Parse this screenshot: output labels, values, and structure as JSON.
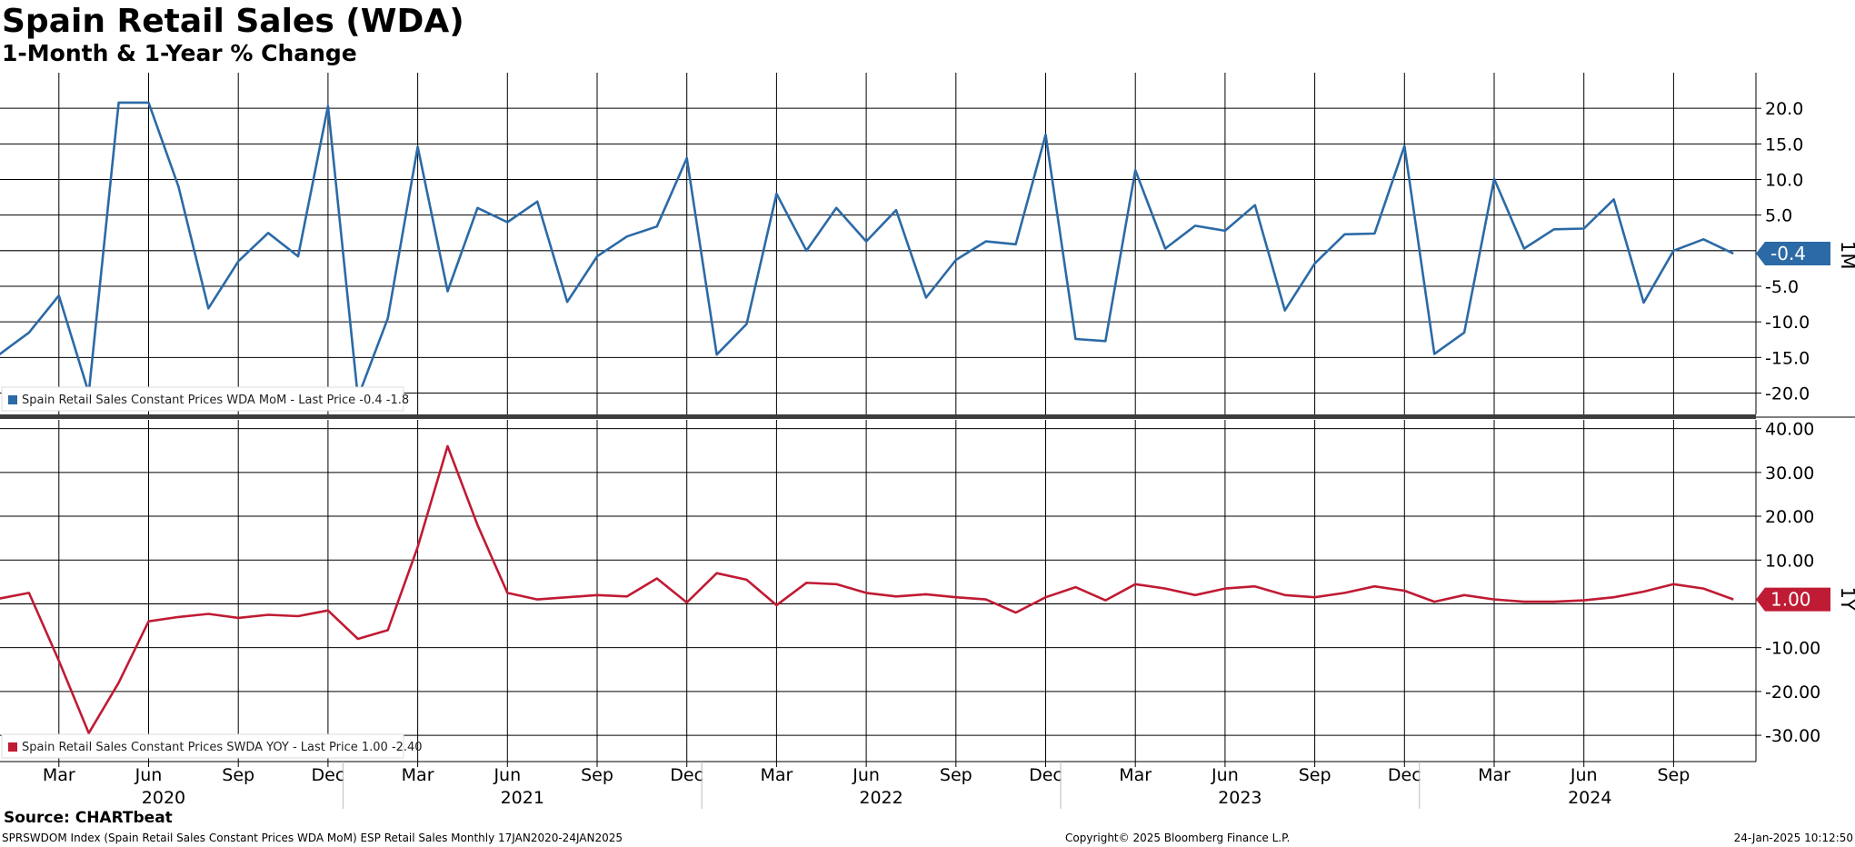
{
  "header": {
    "title": "Spain Retail Sales (WDA)",
    "subtitle": "1-Month & 1-Year % Change"
  },
  "footer": {
    "source": "Source: CHARTbeat",
    "left": "SPRSWDOM Index (Spain Retail Sales Constant Prices WDA MoM) ESP Retail Sales  Monthly 17JAN2020-24JAN2025",
    "copyright": "Copyright© 2025 Bloomberg Finance L.P.",
    "timestamp": "24-Jan-2025 10:12:50"
  },
  "colors": {
    "mom_series": "#2b6aa6",
    "yoy_series": "#c01b34",
    "grid": "#000000",
    "divider": "#3c3c3c"
  },
  "chart_data": [
    {
      "type": "line",
      "panel_label": "1M",
      "x": [
        "2020-01",
        "2020-02",
        "2020-03",
        "2020-04",
        "2020-05",
        "2020-06",
        "2020-07",
        "2020-08",
        "2020-09",
        "2020-10",
        "2020-11",
        "2020-12",
        "2021-01",
        "2021-02",
        "2021-03",
        "2021-04",
        "2021-05",
        "2021-06",
        "2021-07",
        "2021-08",
        "2021-09",
        "2021-10",
        "2021-11",
        "2021-12",
        "2022-01",
        "2022-02",
        "2022-03",
        "2022-04",
        "2022-05",
        "2022-06",
        "2022-07",
        "2022-08",
        "2022-09",
        "2022-10",
        "2022-11",
        "2022-12",
        "2023-01",
        "2023-02",
        "2023-03",
        "2023-04",
        "2023-05",
        "2023-06",
        "2023-07",
        "2023-08",
        "2023-09",
        "2023-10",
        "2023-11",
        "2023-12",
        "2024-01",
        "2024-02",
        "2024-03",
        "2024-04",
        "2024-05",
        "2024-06",
        "2024-07",
        "2024-08",
        "2024-09",
        "2024-10",
        "2024-11"
      ],
      "series": [
        {
          "name": "Spain Retail Sales Constant Prices WDA MoM",
          "legend_text": "Spain Retail Sales Constant Prices WDA MoM - Last Price -0.4  -1.8",
          "last_price_label": "-0.4",
          "values": [
            -14.6,
            -11.5,
            -6.3,
            -20.0,
            20.8,
            20.8,
            9.0,
            -8.1,
            -1.5,
            2.5,
            -0.8,
            20.3,
            -20.6,
            -9.5,
            14.6,
            -5.7,
            6.0,
            4.0,
            6.9,
            -7.2,
            -0.8,
            2.0,
            3.4,
            13.0,
            -14.6,
            -10.3,
            8.0,
            0.0,
            6.0,
            1.3,
            5.7,
            -6.6,
            -1.3,
            1.3,
            0.9,
            16.3,
            -12.4,
            -12.7,
            11.3,
            0.3,
            3.5,
            2.8,
            6.4,
            -8.4,
            -1.8,
            2.3,
            2.4,
            14.7,
            -14.5,
            -11.5,
            10.1,
            0.3,
            3.0,
            3.1,
            7.2,
            -7.3,
            0.0,
            1.6,
            -0.4
          ]
        }
      ],
      "yticks": [
        "20.0",
        "15.0",
        "10.0",
        "5.0",
        "-5.0",
        "-10.0",
        "-15.0",
        "-20.0"
      ],
      "ylim": [
        -23.0,
        25.0
      ],
      "grid": true,
      "legend_position": "bottom-left"
    },
    {
      "type": "line",
      "panel_label": "1Y",
      "x": [
        "2020-01",
        "2020-02",
        "2020-03",
        "2020-04",
        "2020-05",
        "2020-06",
        "2020-07",
        "2020-08",
        "2020-09",
        "2020-10",
        "2020-11",
        "2020-12",
        "2021-01",
        "2021-02",
        "2021-03",
        "2021-04",
        "2021-05",
        "2021-06",
        "2021-07",
        "2021-08",
        "2021-09",
        "2021-10",
        "2021-11",
        "2021-12",
        "2022-01",
        "2022-02",
        "2022-03",
        "2022-04",
        "2022-05",
        "2022-06",
        "2022-07",
        "2022-08",
        "2022-09",
        "2022-10",
        "2022-11",
        "2022-12",
        "2023-01",
        "2023-02",
        "2023-03",
        "2023-04",
        "2023-05",
        "2023-06",
        "2023-07",
        "2023-08",
        "2023-09",
        "2023-10",
        "2023-11",
        "2023-12",
        "2024-01",
        "2024-02",
        "2024-03",
        "2024-04",
        "2024-05",
        "2024-06",
        "2024-07",
        "2024-08",
        "2024-09",
        "2024-10",
        "2024-11"
      ],
      "series": [
        {
          "name": "Spain Retail Sales Constant Prices SWDA YOY",
          "legend_text": "Spain Retail Sales Constant Prices SWDA YOY - Last Price 1.00  -2.40",
          "last_price_label": "1.00",
          "values": [
            1.2,
            2.5,
            -13.0,
            -29.5,
            -18.0,
            -4.0,
            -3.0,
            -2.3,
            -3.2,
            -2.5,
            -2.8,
            -1.5,
            -8.0,
            -6.0,
            13.0,
            36.0,
            18.0,
            2.5,
            1.0,
            1.5,
            2.0,
            1.7,
            5.8,
            0.3,
            7.0,
            5.5,
            -0.3,
            4.8,
            4.5,
            2.5,
            1.7,
            2.2,
            1.5,
            1.0,
            -2.0,
            1.5,
            3.8,
            0.8,
            4.5,
            3.5,
            2.0,
            3.5,
            4.0,
            2.0,
            1.5,
            2.5,
            4.0,
            3.0,
            0.5,
            2.0,
            1.0,
            0.5,
            0.5,
            0.8,
            1.5,
            2.8,
            4.5,
            3.5,
            1.0
          ]
        }
      ],
      "yticks": [
        "40.00",
        "30.00",
        "20.00",
        "10.00",
        "-10.00",
        "-20.00",
        "-30.00"
      ],
      "ylim": [
        -36.0,
        42.0
      ],
      "grid": true,
      "legend_position": "bottom-left"
    }
  ],
  "x_axis": {
    "month_ticks": [
      "Mar",
      "Jun",
      "Sep",
      "Dec",
      "Mar",
      "Jun",
      "Sep",
      "Dec",
      "Mar",
      "Jun",
      "Sep",
      "Dec",
      "Mar",
      "Jun",
      "Sep",
      "Dec",
      "Mar",
      "Jun",
      "Sep"
    ],
    "years": [
      "2020",
      "2021",
      "2022",
      "2023",
      "2024"
    ]
  }
}
